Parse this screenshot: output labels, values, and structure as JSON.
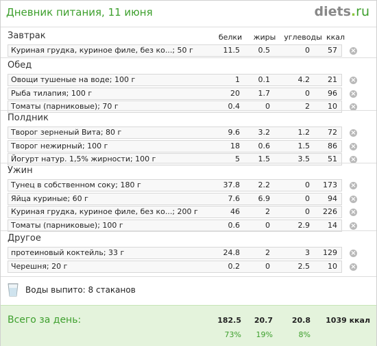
{
  "header": {
    "title": "Дневник питания, 11 июня",
    "logo_main": "diets",
    "logo_dot": ".",
    "logo_tld": "ru"
  },
  "columns": {
    "protein": "белки",
    "fat": "жиры",
    "carbs": "углеводы",
    "kcal": "ккал"
  },
  "meals": [
    {
      "title": "Завтрак",
      "items": [
        {
          "name": "Куриная грудка, куриное филе, без ко...; 50 г",
          "protein": "11.5",
          "fat": "0.5",
          "carbs": "0",
          "kcal": "57"
        }
      ]
    },
    {
      "title": "Обед",
      "items": [
        {
          "name": "Овощи тушеные на воде; 100 г",
          "protein": "1",
          "fat": "0.1",
          "carbs": "4.2",
          "kcal": "21"
        },
        {
          "name": "Рыба тилапия; 100 г",
          "protein": "20",
          "fat": "1.7",
          "carbs": "0",
          "kcal": "96"
        },
        {
          "name": "Томаты (парниковые); 70 г",
          "protein": "0.4",
          "fat": "0",
          "carbs": "2",
          "kcal": "10"
        }
      ]
    },
    {
      "title": "Полдник",
      "items": [
        {
          "name": "Творог зерненый Вита; 80 г",
          "protein": "9.6",
          "fat": "3.2",
          "carbs": "1.2",
          "kcal": "72"
        },
        {
          "name": "Творог нежирный; 100 г",
          "protein": "18",
          "fat": "0.6",
          "carbs": "1.5",
          "kcal": "86"
        },
        {
          "name": "Йогурт натур. 1,5% жирности; 100 г",
          "protein": "5",
          "fat": "1.5",
          "carbs": "3.5",
          "kcal": "51"
        }
      ]
    },
    {
      "title": "Ужин",
      "items": [
        {
          "name": "Тунец в собственном соку; 180 г",
          "protein": "37.8",
          "fat": "2.2",
          "carbs": "0",
          "kcal": "173"
        },
        {
          "name": "Яйца куриные; 60 г",
          "protein": "7.6",
          "fat": "6.9",
          "carbs": "0",
          "kcal": "94"
        },
        {
          "name": "Куриная грудка, куриное филе, без ко...; 200 г",
          "protein": "46",
          "fat": "2",
          "carbs": "0",
          "kcal": "226"
        },
        {
          "name": "Томаты (парниковые); 100 г",
          "protein": "0.6",
          "fat": "0",
          "carbs": "2.9",
          "kcal": "14"
        }
      ]
    },
    {
      "title": "Другое",
      "items": [
        {
          "name": "протеиновый коктейль; 33 г",
          "protein": "24.8",
          "fat": "2",
          "carbs": "3",
          "kcal": "129"
        },
        {
          "name": "Черешня; 20 г",
          "protein": "0.2",
          "fat": "0",
          "carbs": "2.5",
          "kcal": "10"
        }
      ]
    }
  ],
  "delete_glyph": "×",
  "water": {
    "text": "Воды выпито: 8 стаканов",
    "icon": "glass-icon"
  },
  "totals": {
    "label": "Всего за день:",
    "protein": "182.5",
    "fat": "20.7",
    "carbs": "20.8",
    "kcal": "1039 ккал",
    "protein_pct": "73%",
    "fat_pct": "19%",
    "carbs_pct": "8%"
  },
  "colors": {
    "accent_green": "#3d9f2d",
    "footer_bg": "#e4f3dc",
    "row_bg": "#f8f8f8"
  }
}
